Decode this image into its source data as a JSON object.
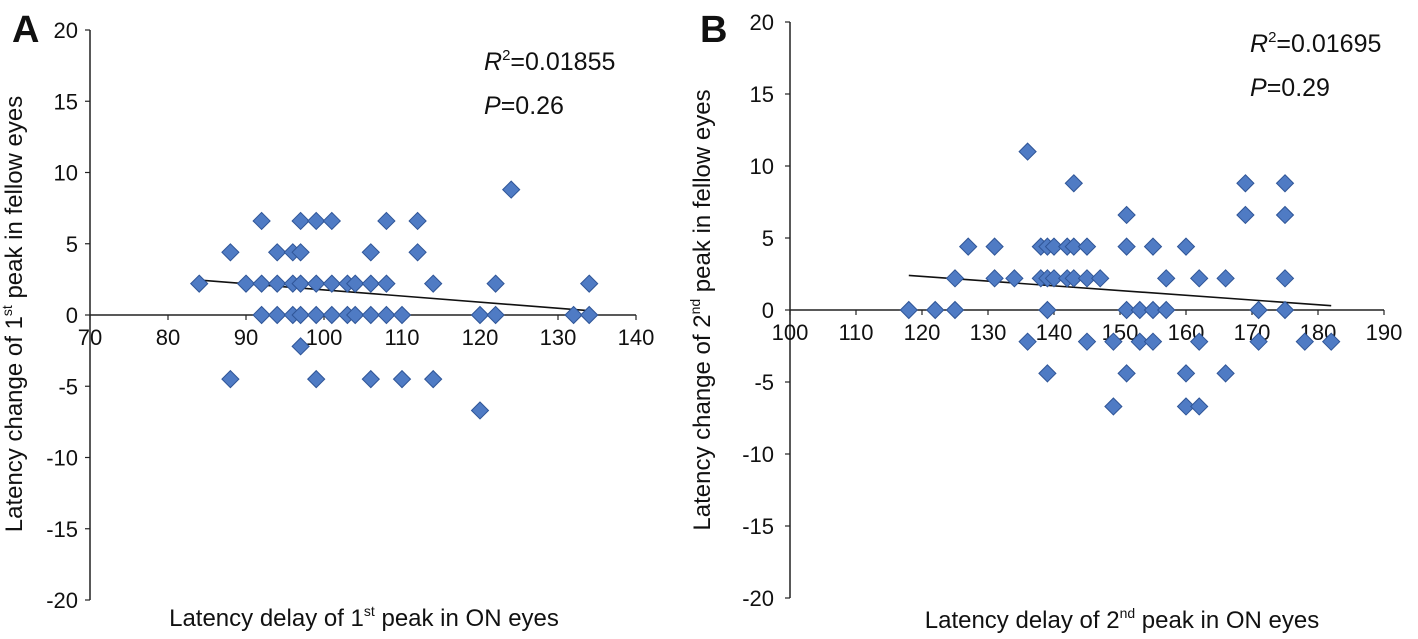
{
  "chart_data": [
    {
      "type": "scatter",
      "panel_label": "A",
      "xlabel": {
        "pre": "Latency delay of 1",
        "sup": "st",
        "post": " peak in ON eyes"
      },
      "ylabel": {
        "pre": "Latency change of 1",
        "sup": "st",
        "post": " peak in fellow eyes"
      },
      "xlim": [
        70,
        140
      ],
      "ylim": [
        -20,
        20
      ],
      "xticks": [
        "70",
        "80",
        "90",
        "100",
        "110",
        "120",
        "130",
        "140"
      ],
      "yticks": [
        "20",
        "15",
        "10",
        "5",
        "0",
        "-5",
        "-10",
        "-15",
        "-20"
      ],
      "annotations": {
        "r2_label": "R",
        "r2_sup": "2",
        "r2_value": "=0.01855",
        "p_label": "P",
        "p_value": "=0.26"
      },
      "trendline": {
        "x": [
          84,
          134
        ],
        "y": [
          2.45,
          0.3
        ]
      },
      "points": [
        [
          84,
          2.2
        ],
        [
          88,
          4.4
        ],
        [
          88,
          -4.5
        ],
        [
          90,
          2.2
        ],
        [
          92,
          6.6
        ],
        [
          92,
          2.2
        ],
        [
          92,
          0
        ],
        [
          94,
          4.4
        ],
        [
          94,
          2.2
        ],
        [
          94,
          0
        ],
        [
          96,
          4.4
        ],
        [
          96,
          2.2
        ],
        [
          96,
          0
        ],
        [
          97,
          6.6
        ],
        [
          97,
          4.4
        ],
        [
          97,
          2.2
        ],
        [
          97,
          0
        ],
        [
          97,
          -2.2
        ],
        [
          99,
          6.6
        ],
        [
          99,
          2.2
        ],
        [
          99,
          0
        ],
        [
          99,
          -4.5
        ],
        [
          101,
          6.6
        ],
        [
          101,
          2.2
        ],
        [
          101,
          0
        ],
        [
          103,
          2.2
        ],
        [
          103,
          0
        ],
        [
          104,
          2.2
        ],
        [
          104,
          0
        ],
        [
          106,
          4.4
        ],
        [
          106,
          2.2
        ],
        [
          106,
          0
        ],
        [
          106,
          -4.5
        ],
        [
          108,
          6.6
        ],
        [
          108,
          2.2
        ],
        [
          108,
          0
        ],
        [
          110,
          0
        ],
        [
          110,
          -4.5
        ],
        [
          112,
          6.6
        ],
        [
          112,
          4.4
        ],
        [
          114,
          2.2
        ],
        [
          114,
          -4.5
        ],
        [
          120,
          0
        ],
        [
          120,
          -6.7
        ],
        [
          122,
          2.2
        ],
        [
          122,
          0
        ],
        [
          124,
          8.8
        ],
        [
          132,
          0
        ],
        [
          134,
          2.2
        ],
        [
          134,
          0
        ]
      ]
    },
    {
      "type": "scatter",
      "panel_label": "B",
      "xlabel": {
        "pre": "Latency delay of 2",
        "sup": "nd",
        "post": " peak in ON eyes"
      },
      "ylabel": {
        "pre": "Latency change of 2",
        "sup": "nd",
        "post": " peak in fellow eyes"
      },
      "xlim": [
        100,
        190
      ],
      "ylim": [
        -20,
        20
      ],
      "xticks": [
        "100",
        "110",
        "120",
        "130",
        "140",
        "150",
        "160",
        "170",
        "180",
        "190"
      ],
      "yticks": [
        "20",
        "15",
        "10",
        "5",
        "0",
        "-5",
        "-10",
        "-15",
        "-20"
      ],
      "annotations": {
        "r2_label": "R",
        "r2_sup": "2",
        "r2_value": "=0.01695",
        "p_label": "P",
        "p_value": "=0.29"
      },
      "trendline": {
        "x": [
          118,
          182
        ],
        "y": [
          2.4,
          0.3
        ]
      },
      "points": [
        [
          118,
          0
        ],
        [
          122,
          0
        ],
        [
          125,
          0
        ],
        [
          125,
          2.2
        ],
        [
          127,
          4.4
        ],
        [
          131,
          4.4
        ],
        [
          131,
          2.2
        ],
        [
          134,
          2.2
        ],
        [
          136,
          11
        ],
        [
          136,
          -2.2
        ],
        [
          138,
          4.4
        ],
        [
          138,
          2.2
        ],
        [
          139,
          4.4
        ],
        [
          139,
          2.2
        ],
        [
          139,
          0
        ],
        [
          139,
          -4.4
        ],
        [
          140,
          4.4
        ],
        [
          140,
          2.2
        ],
        [
          142,
          4.4
        ],
        [
          142,
          2.2
        ],
        [
          143,
          8.8
        ],
        [
          143,
          4.4
        ],
        [
          143,
          2.2
        ],
        [
          145,
          4.4
        ],
        [
          145,
          2.2
        ],
        [
          145,
          -2.2
        ],
        [
          147,
          2.2
        ],
        [
          149,
          -2.2
        ],
        [
          149,
          -6.7
        ],
        [
          151,
          6.6
        ],
        [
          151,
          4.4
        ],
        [
          151,
          0
        ],
        [
          151,
          -4.4
        ],
        [
          153,
          0
        ],
        [
          153,
          -2.2
        ],
        [
          155,
          4.4
        ],
        [
          155,
          0
        ],
        [
          155,
          -2.2
        ],
        [
          157,
          2.2
        ],
        [
          157,
          0
        ],
        [
          160,
          4.4
        ],
        [
          160,
          -4.4
        ],
        [
          160,
          -6.7
        ],
        [
          162,
          2.2
        ],
        [
          162,
          -2.2
        ],
        [
          162,
          -6.7
        ],
        [
          166,
          2.2
        ],
        [
          166,
          -4.4
        ],
        [
          169,
          8.8
        ],
        [
          169,
          6.6
        ],
        [
          171,
          0
        ],
        [
          171,
          -2.2
        ],
        [
          175,
          8.8
        ],
        [
          175,
          6.6
        ],
        [
          175,
          2.2
        ],
        [
          175,
          0
        ],
        [
          178,
          -2.2
        ],
        [
          182,
          -2.2
        ]
      ]
    }
  ]
}
